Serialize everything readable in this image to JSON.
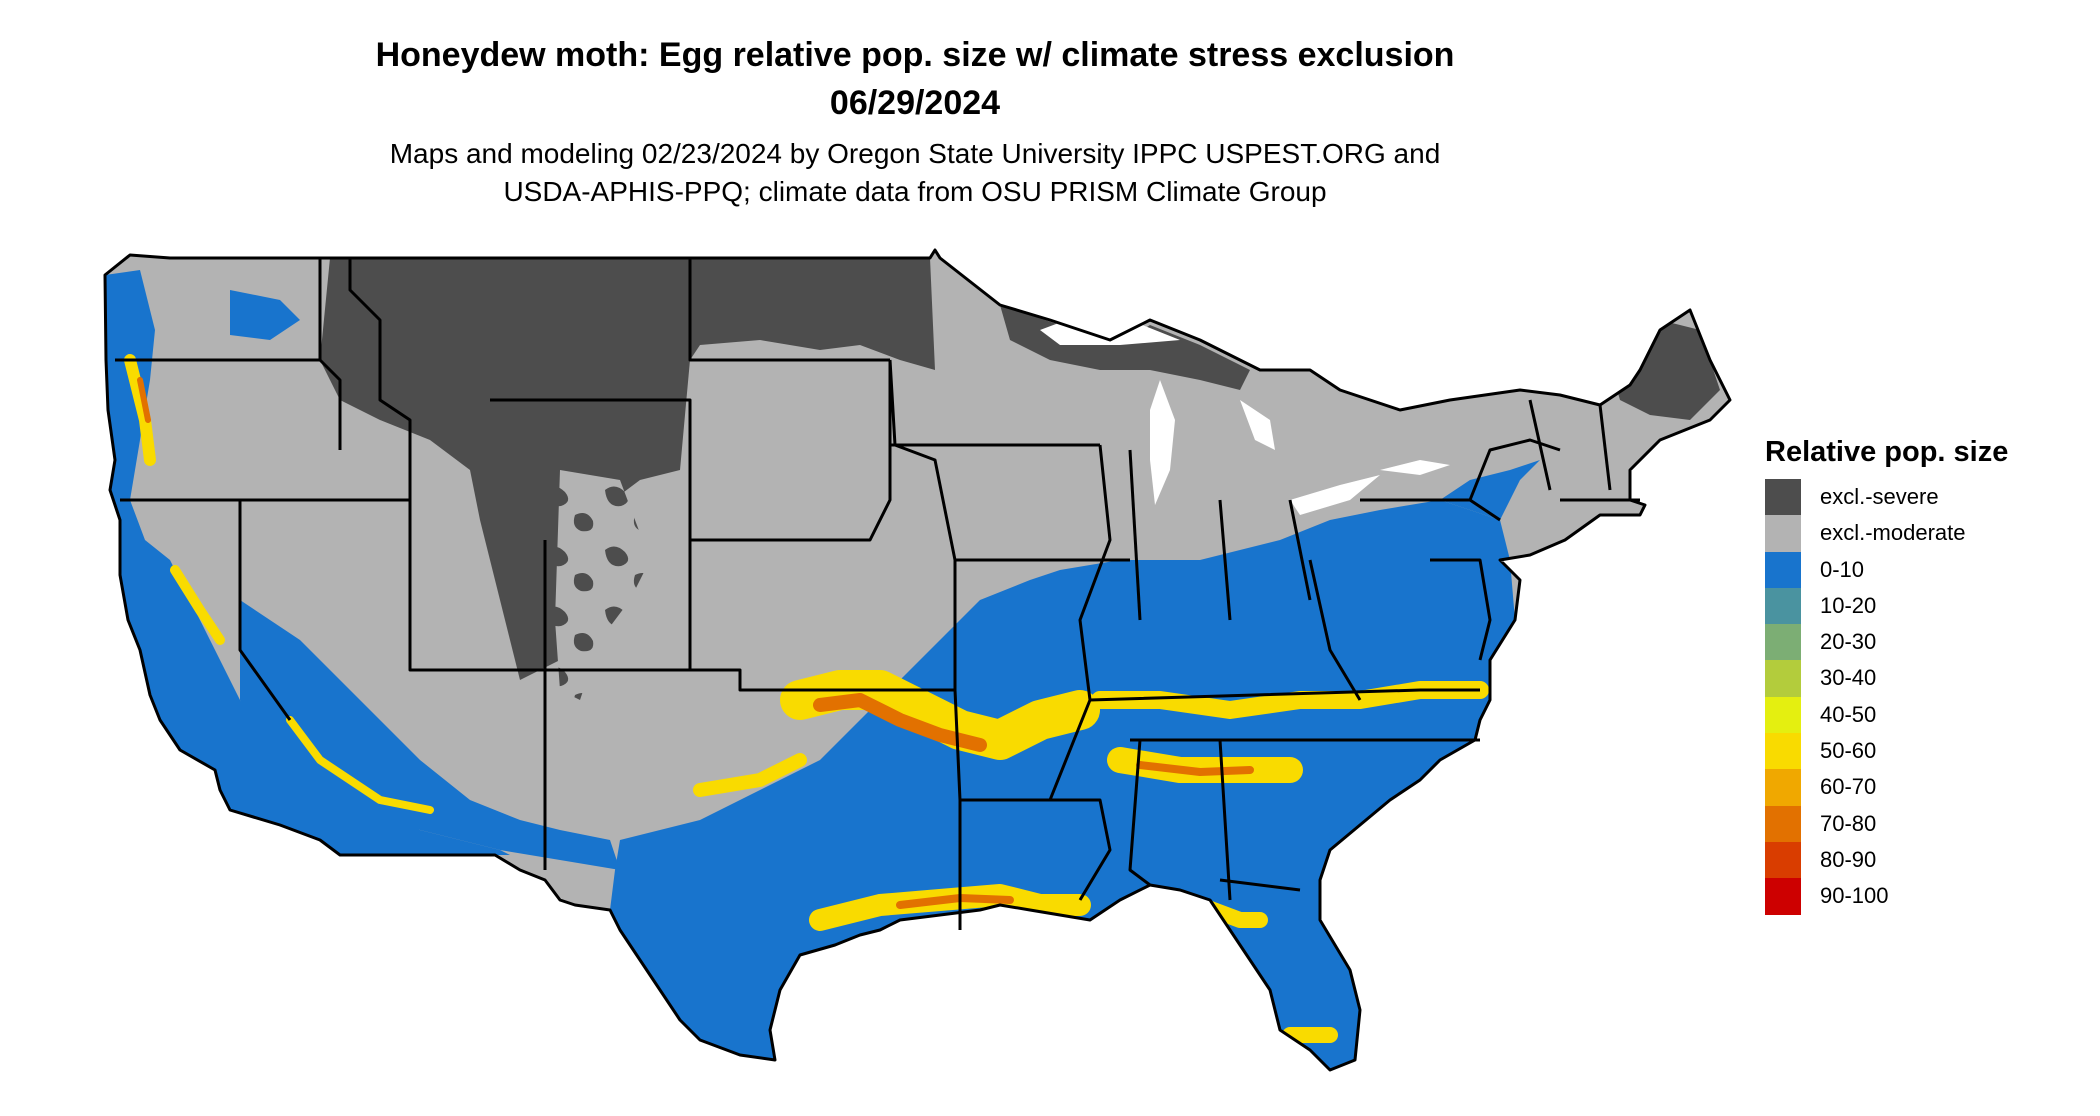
{
  "title": "Honeydew moth: Egg relative pop. size w/ climate stress exclusion",
  "date": "06/29/2024",
  "subtitle_line1": "Maps and modeling 02/23/2024 by Oregon State University IPPC USPEST.ORG and",
  "subtitle_line2": "USDA-APHIS-PPQ; climate data from OSU PRISM Climate Group",
  "legend": {
    "title": "Relative pop. size",
    "items": [
      {
        "label": "excl.-severe",
        "color": "#4d4d4d"
      },
      {
        "label": "excl.-moderate",
        "color": "#b3b3b3"
      },
      {
        "label": "0-10",
        "color": "#1874cd"
      },
      {
        "label": "10-20",
        "color": "#4a93a0"
      },
      {
        "label": "20-30",
        "color": "#7cae74"
      },
      {
        "label": "30-40",
        "color": "#b3cc3c"
      },
      {
        "label": "40-50",
        "color": "#e4ef10"
      },
      {
        "label": "50-60",
        "color": "#f9db00"
      },
      {
        "label": "60-70",
        "color": "#f0a800"
      },
      {
        "label": "70-80",
        "color": "#e27100"
      },
      {
        "label": "80-90",
        "color": "#d93d00"
      },
      {
        "label": "90-100",
        "color": "#cd0000"
      }
    ]
  }
}
